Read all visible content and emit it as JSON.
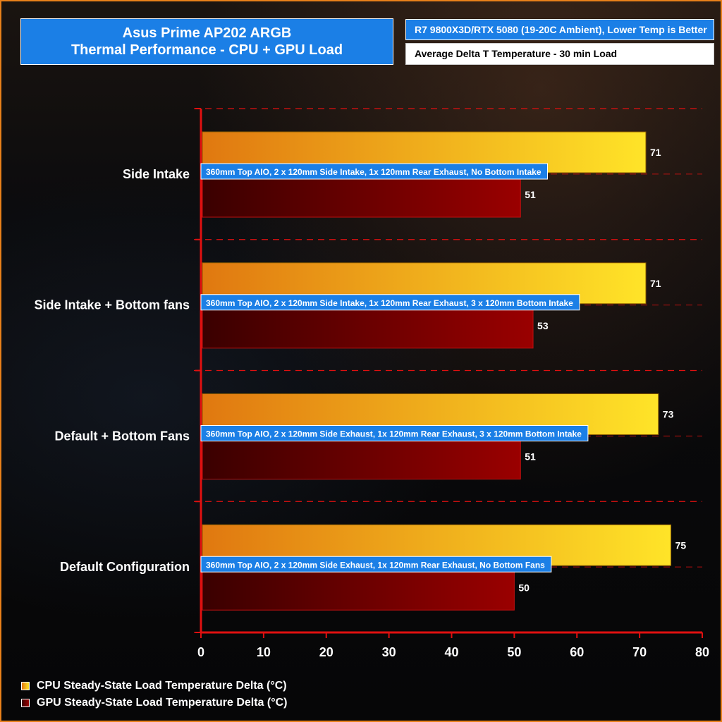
{
  "header": {
    "title_line1": "Asus Prime AP202 ARGB",
    "title_line2": "Thermal Performance - CPU + GPU Load",
    "spec": "R7 9800X3D/RTX 5080 (19-20C Ambient), Lower Temp is Better",
    "metric": "Average Delta T Temperature - 30 min Load"
  },
  "colors": {
    "accent_blue": "#1b7fe6",
    "axis_red": "#e01010",
    "cpu_bar": "#f0b020",
    "gpu_bar": "#8b0000",
    "border_orange": "#e8801a"
  },
  "chart_data": {
    "type": "bar",
    "orientation": "horizontal",
    "title": "Asus Prime AP202 ARGB Thermal Performance - CPU + GPU Load",
    "categories": [
      "Side Intake",
      "Side Intake + Bottom fans",
      "Default + Bottom Fans",
      "Default Configuration"
    ],
    "notes": [
      "360mm Top AIO, 2 x 120mm Side Intake, 1x 120mm  Rear Exhaust, No Bottom Intake",
      "360mm Top AIO, 2 x 120mm Side Intake, 1x 120mm  Rear Exhaust, 3 x 120mm Bottom Intake",
      "360mm Top AIO, 2 x 120mm Side Exhaust, 1x 120mm  Rear Exhaust, 3 x 120mm Bottom Intake",
      "360mm Top AIO, 2 x 120mm Side Exhaust, 1x 120mm  Rear Exhaust, No Bottom Fans"
    ],
    "series": [
      {
        "name": "CPU Steady-State Load Temperature Delta (°C)",
        "values": [
          71,
          71,
          73,
          75
        ]
      },
      {
        "name": "GPU Steady-State Load Temperature Delta (°C)",
        "values": [
          51,
          53,
          51,
          50
        ]
      }
    ],
    "xlim": [
      0,
      80
    ],
    "xticks": [
      0,
      10,
      20,
      30,
      40,
      50,
      60,
      70,
      80
    ],
    "grid": true,
    "legend": "bottom-left"
  }
}
